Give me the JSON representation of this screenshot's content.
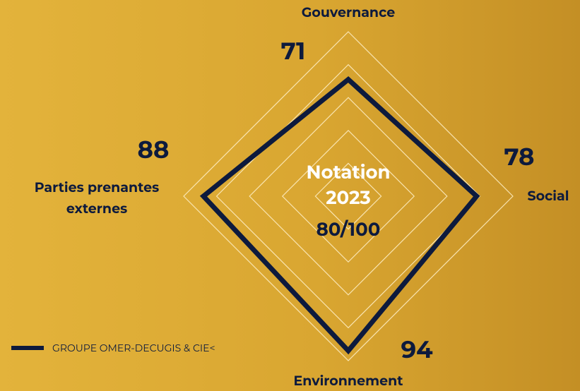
{
  "chart_data": {
    "type": "radar",
    "categories": [
      "Gouvernance",
      "Social",
      "Environnement",
      "Parties prenantes externes"
    ],
    "series": [
      {
        "name": "GROUPE OMER-DECUGIS & CIE<",
        "color": "#0d1a3d",
        "values": [
          71,
          78,
          94,
          88
        ]
      }
    ],
    "rlim": [
      0,
      100
    ],
    "rticks": [
      20,
      40,
      60,
      80,
      100
    ],
    "grid": true,
    "center_title": "Notation 2023",
    "center_score": "80/100",
    "legend": "lower left"
  }
}
